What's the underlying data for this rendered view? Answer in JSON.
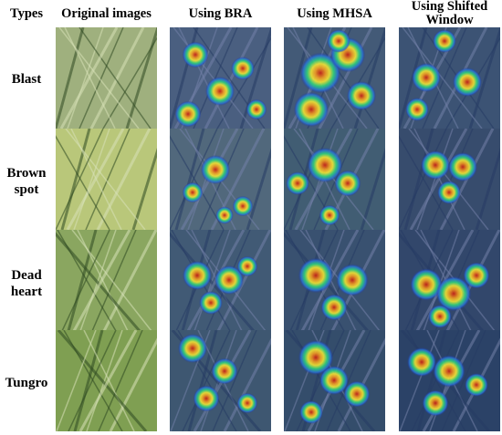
{
  "headers": {
    "types": "Types",
    "original": "Original images",
    "bra": "Using BRA",
    "mhsa": "Using MHSA",
    "shifted": "Using Shifted Window"
  },
  "rows": [
    {
      "label": "Blast"
    },
    {
      "label": "Brown spot"
    },
    {
      "label": "Dead heart"
    },
    {
      "label": "Tungro"
    }
  ],
  "colors": {
    "jet_low": "#1f2f9a",
    "jet_mid": "#2fd07a",
    "jet_high_yellow": "#f2e432",
    "jet_peak": "#d42a1c",
    "leaf_green": "#6f9a4a",
    "leaf_dark": "#2f4a22"
  }
}
